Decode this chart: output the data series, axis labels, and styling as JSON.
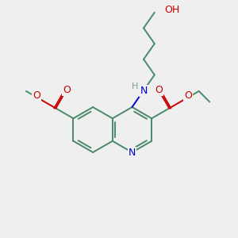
{
  "bg_color": "#efefef",
  "bond_color": "#4a8a6a",
  "nitrogen_color": "#0000cc",
  "oxygen_color": "#cc0000",
  "hydrogen_color": "#7a9a9a",
  "lw": 1.4,
  "figsize": [
    3.0,
    3.0
  ],
  "dpi": 100,
  "xlim": [
    0,
    10
  ],
  "ylim": [
    0,
    10
  ]
}
